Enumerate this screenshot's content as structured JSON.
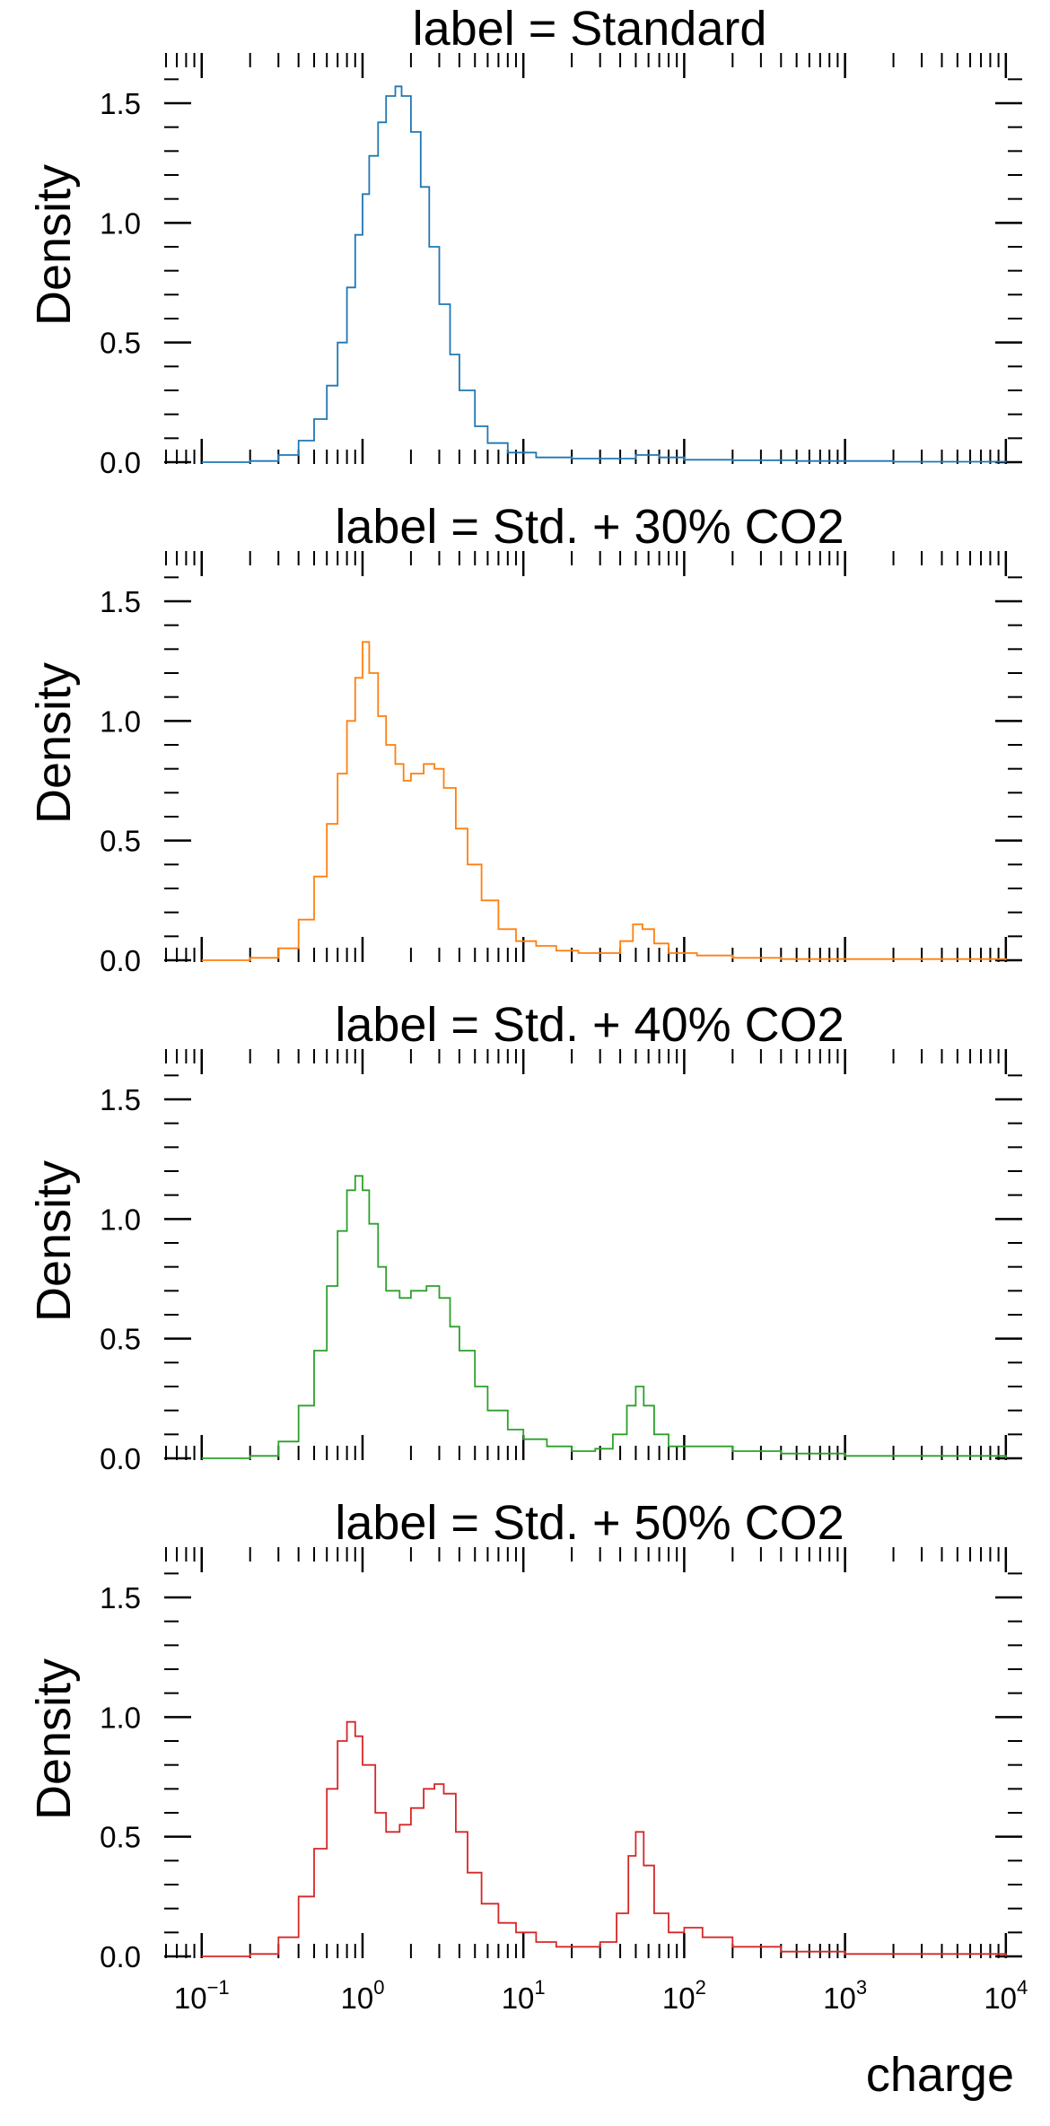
{
  "chart_data": {
    "type": "histogram",
    "xscale": "log",
    "xlim": [
      0.06,
      12000
    ],
    "ylim": [
      0,
      1.65
    ],
    "xlabel": "charge",
    "ylabel": "Density",
    "x_ticks": [
      {
        "base": "10",
        "exp": "−1",
        "value": 0.1
      },
      {
        "base": "10",
        "exp": "0",
        "value": 1
      },
      {
        "base": "10",
        "exp": "1",
        "value": 10
      },
      {
        "base": "10",
        "exp": "2",
        "value": 100
      },
      {
        "base": "10",
        "exp": "3",
        "value": 1000
      },
      {
        "base": "10",
        "exp": "4",
        "value": 10000
      }
    ],
    "y_ticks": [
      {
        "label": "0.0",
        "value": 0.0
      },
      {
        "label": "0.5",
        "value": 0.5
      },
      {
        "label": "1.0",
        "value": 1.0
      },
      {
        "label": "1.5",
        "value": 1.5
      }
    ],
    "panels": [
      {
        "title": "label = Standard",
        "color": "#1f77b4",
        "points": [
          [
            0.1,
            0
          ],
          [
            0.2,
            0.005
          ],
          [
            0.3,
            0.03
          ],
          [
            0.4,
            0.09
          ],
          [
            0.5,
            0.18
          ],
          [
            0.6,
            0.32
          ],
          [
            0.7,
            0.5
          ],
          [
            0.8,
            0.73
          ],
          [
            0.9,
            0.95
          ],
          [
            1.0,
            1.12
          ],
          [
            1.1,
            1.28
          ],
          [
            1.25,
            1.42
          ],
          [
            1.4,
            1.53
          ],
          [
            1.6,
            1.57
          ],
          [
            1.75,
            1.53
          ],
          [
            2.0,
            1.38
          ],
          [
            2.3,
            1.15
          ],
          [
            2.6,
            0.9
          ],
          [
            3.0,
            0.66
          ],
          [
            3.5,
            0.45
          ],
          [
            4.0,
            0.3
          ],
          [
            5.0,
            0.15
          ],
          [
            6.0,
            0.08
          ],
          [
            8.0,
            0.04
          ],
          [
            12.0,
            0.02
          ],
          [
            20.0,
            0.015
          ],
          [
            35.0,
            0.015
          ],
          [
            50.0,
            0.03
          ],
          [
            70.0,
            0.02
          ],
          [
            100.0,
            0.01
          ],
          [
            200.0,
            0.008
          ],
          [
            500.0,
            0.005
          ],
          [
            2000.0,
            0.002
          ],
          [
            10000.0,
            0
          ]
        ]
      },
      {
        "title": "label = Std. + 30% CO2",
        "color": "#ff7f0e",
        "points": [
          [
            0.1,
            0
          ],
          [
            0.2,
            0.01
          ],
          [
            0.3,
            0.05
          ],
          [
            0.4,
            0.17
          ],
          [
            0.5,
            0.35
          ],
          [
            0.6,
            0.57
          ],
          [
            0.7,
            0.78
          ],
          [
            0.8,
            1.0
          ],
          [
            0.9,
            1.18
          ],
          [
            1.0,
            1.33
          ],
          [
            1.1,
            1.2
          ],
          [
            1.25,
            1.02
          ],
          [
            1.4,
            0.9
          ],
          [
            1.6,
            0.82
          ],
          [
            1.8,
            0.75
          ],
          [
            2.0,
            0.78
          ],
          [
            2.4,
            0.82
          ],
          [
            2.8,
            0.8
          ],
          [
            3.2,
            0.72
          ],
          [
            3.8,
            0.55
          ],
          [
            4.5,
            0.4
          ],
          [
            5.5,
            0.25
          ],
          [
            7.0,
            0.13
          ],
          [
            9.0,
            0.08
          ],
          [
            12.0,
            0.06
          ],
          [
            16.0,
            0.04
          ],
          [
            22.0,
            0.03
          ],
          [
            30.0,
            0.03
          ],
          [
            40.0,
            0.08
          ],
          [
            48.0,
            0.15
          ],
          [
            55.0,
            0.13
          ],
          [
            65.0,
            0.07
          ],
          [
            80.0,
            0.03
          ],
          [
            120.0,
            0.02
          ],
          [
            200.0,
            0.01
          ],
          [
            400.0,
            0.005
          ],
          [
            10000.0,
            0
          ]
        ]
      },
      {
        "title": "label = Std. + 40% CO2",
        "color": "#2ca02c",
        "points": [
          [
            0.1,
            0
          ],
          [
            0.2,
            0.01
          ],
          [
            0.3,
            0.07
          ],
          [
            0.4,
            0.22
          ],
          [
            0.5,
            0.45
          ],
          [
            0.6,
            0.72
          ],
          [
            0.7,
            0.95
          ],
          [
            0.8,
            1.12
          ],
          [
            0.9,
            1.18
          ],
          [
            1.0,
            1.12
          ],
          [
            1.1,
            0.98
          ],
          [
            1.25,
            0.8
          ],
          [
            1.4,
            0.7
          ],
          [
            1.7,
            0.67
          ],
          [
            2.0,
            0.7
          ],
          [
            2.5,
            0.72
          ],
          [
            3.0,
            0.67
          ],
          [
            3.5,
            0.55
          ],
          [
            4.0,
            0.45
          ],
          [
            5.0,
            0.3
          ],
          [
            6.0,
            0.2
          ],
          [
            8.0,
            0.12
          ],
          [
            10.0,
            0.08
          ],
          [
            14.0,
            0.05
          ],
          [
            20.0,
            0.03
          ],
          [
            28.0,
            0.04
          ],
          [
            36.0,
            0.1
          ],
          [
            44.0,
            0.22
          ],
          [
            50.0,
            0.3
          ],
          [
            56.0,
            0.22
          ],
          [
            65.0,
            0.1
          ],
          [
            80.0,
            0.05
          ],
          [
            120.0,
            0.05
          ],
          [
            200.0,
            0.03
          ],
          [
            400.0,
            0.02
          ],
          [
            1000.0,
            0.01
          ],
          [
            10000.0,
            0
          ]
        ]
      },
      {
        "title": "label = Std. + 50% CO2",
        "color": "#d62728",
        "points": [
          [
            0.1,
            0
          ],
          [
            0.2,
            0.01
          ],
          [
            0.3,
            0.08
          ],
          [
            0.4,
            0.25
          ],
          [
            0.5,
            0.45
          ],
          [
            0.6,
            0.7
          ],
          [
            0.7,
            0.9
          ],
          [
            0.8,
            0.98
          ],
          [
            0.9,
            0.92
          ],
          [
            1.0,
            0.8
          ],
          [
            1.2,
            0.6
          ],
          [
            1.4,
            0.52
          ],
          [
            1.7,
            0.55
          ],
          [
            2.0,
            0.62
          ],
          [
            2.4,
            0.7
          ],
          [
            2.8,
            0.72
          ],
          [
            3.2,
            0.68
          ],
          [
            3.8,
            0.52
          ],
          [
            4.5,
            0.35
          ],
          [
            5.5,
            0.22
          ],
          [
            7.0,
            0.14
          ],
          [
            9.0,
            0.1
          ],
          [
            12.0,
            0.06
          ],
          [
            16.0,
            0.04
          ],
          [
            22.0,
            0.04
          ],
          [
            30.0,
            0.06
          ],
          [
            38.0,
            0.18
          ],
          [
            45.0,
            0.42
          ],
          [
            50.0,
            0.52
          ],
          [
            56.0,
            0.38
          ],
          [
            65.0,
            0.18
          ],
          [
            80.0,
            0.1
          ],
          [
            100.0,
            0.12
          ],
          [
            130.0,
            0.08
          ],
          [
            200.0,
            0.04
          ],
          [
            400.0,
            0.02
          ],
          [
            1000.0,
            0.01
          ],
          [
            10000.0,
            0
          ]
        ]
      }
    ]
  }
}
